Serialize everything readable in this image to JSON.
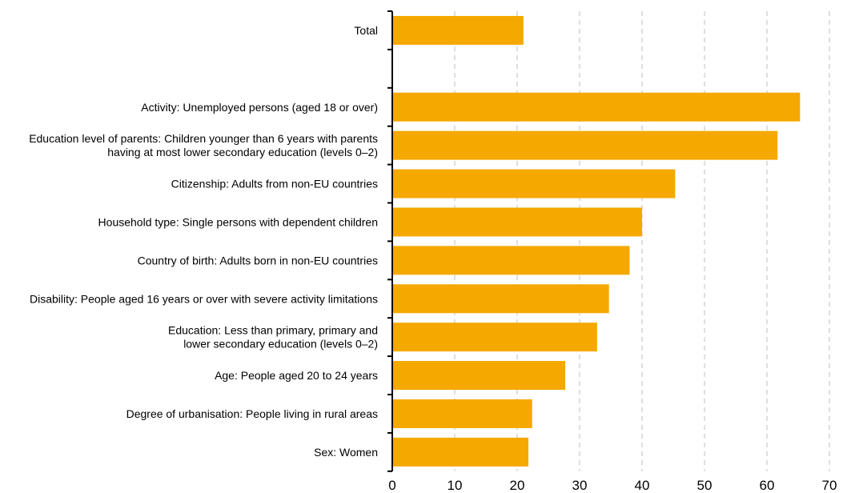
{
  "chart_data": {
    "type": "bar",
    "orientation": "horizontal",
    "title": "",
    "xlabel": "",
    "ylabel": "",
    "xlim": [
      0,
      70
    ],
    "x_ticks": [
      0,
      10,
      20,
      30,
      40,
      50,
      60,
      70
    ],
    "grid": "vertical dashed",
    "bar_color": "#f5a800",
    "categories": [
      [
        "Total"
      ],
      [],
      [
        "Activity: Unemployed persons (aged 18 or over)"
      ],
      [
        "Education level of parents: Children younger than 6 years with parents",
        "having at most lower secondary education (levels 0–2)"
      ],
      [
        "Citizenship: Adults from non-EU countries"
      ],
      [
        "Household type: Single persons with dependent children"
      ],
      [
        "Country of birth: Adults born in non-EU countries"
      ],
      [
        "Disability: People aged 16 years or over with severe activity limitations"
      ],
      [
        "Education: Less than primary, primary and",
        "lower secondary education (levels 0–2)"
      ],
      [
        "Age: People aged 20 to 24 years"
      ],
      [
        "Degree of urbanisation: People living in rural areas"
      ],
      [
        "Sex: Women"
      ]
    ],
    "values": [
      21.0,
      null,
      65.3,
      61.7,
      45.3,
      40.0,
      38.0,
      34.7,
      32.8,
      27.7,
      22.4,
      21.8
    ]
  }
}
